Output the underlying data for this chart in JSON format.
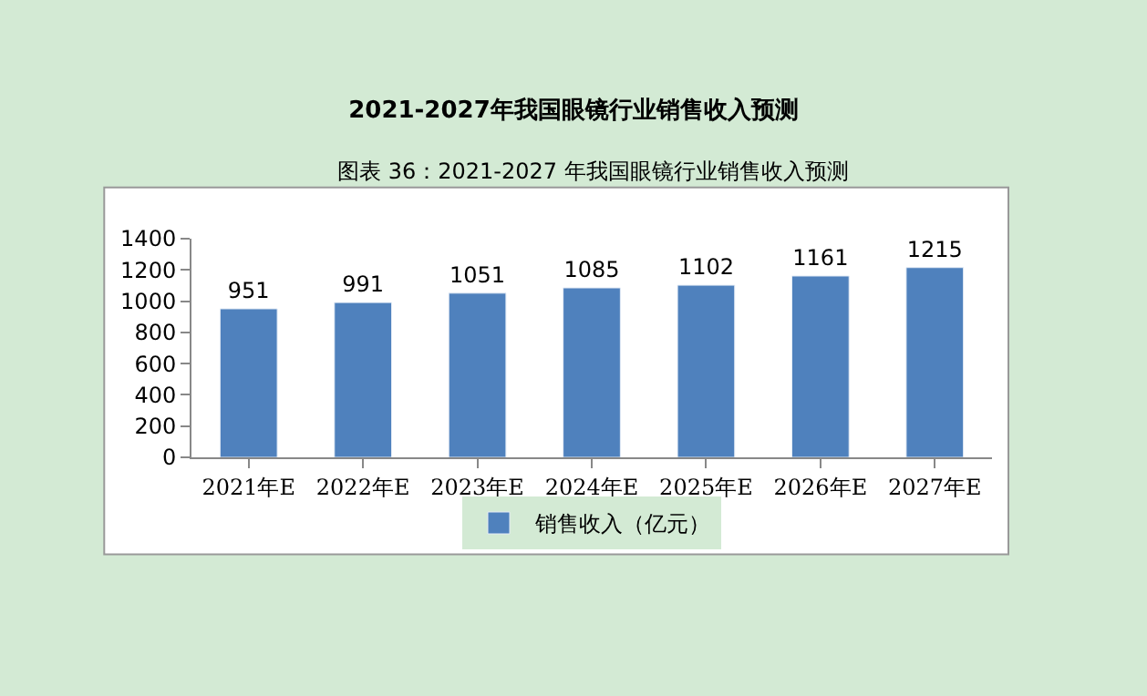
{
  "chart_data": {
    "type": "bar",
    "title": "2021-2027年我国眼镜行业销售收入预测",
    "annotations": [
      "图表 36：2021-2027 年我国眼镜行业销售收入预测"
    ],
    "categories": [
      "2021年E",
      "2022年E",
      "2023年E",
      "2024年E",
      "2025年E",
      "2026年E",
      "2027年E"
    ],
    "series": [
      {
        "name": "销售收入（亿元）",
        "color": "#4f81bd",
        "values": [
          951,
          991,
          1051,
          1085,
          1102,
          1161,
          1215
        ]
      }
    ],
    "ylim": [
      0,
      1400
    ],
    "yticks": [
      0,
      200,
      400,
      600,
      800,
      1000,
      1200,
      1400
    ],
    "data_labels": true,
    "grid": false,
    "legend": "bottom"
  }
}
